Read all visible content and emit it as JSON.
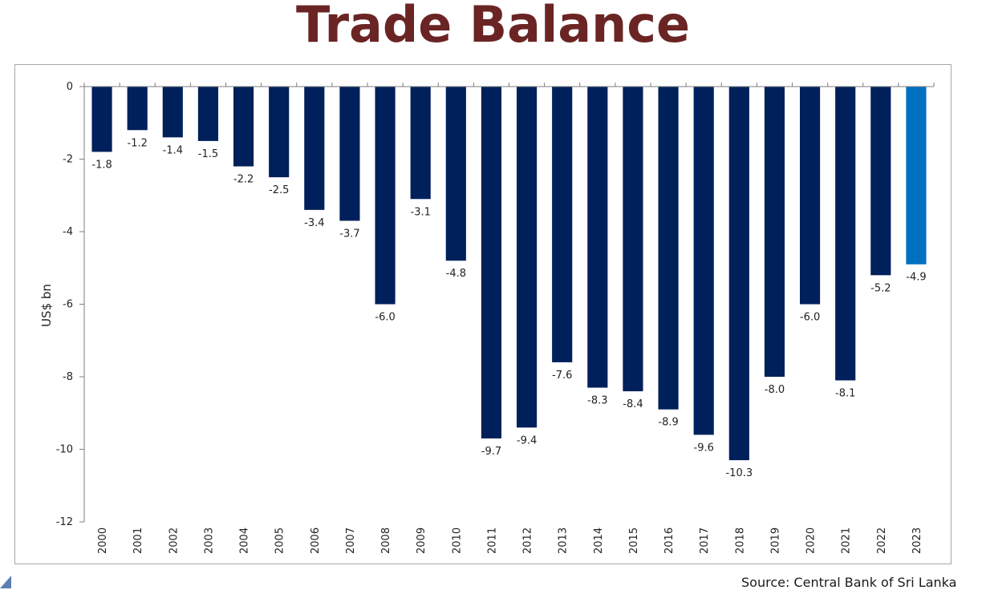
{
  "title": "Trade Balance",
  "source": "Source: Central Bank of Sri Lanka",
  "colors": {
    "title": "#6b2424",
    "bar": "#00205b",
    "highlight": "#0070c0",
    "axis": "#7f7f7f"
  },
  "chart_data": {
    "type": "bar",
    "title": "Trade Balance",
    "ylabel": "US$ bn",
    "xlabel": "",
    "ylim": [
      -12,
      0
    ],
    "yticks": [
      0,
      -2,
      -4,
      -6,
      -8,
      -10,
      -12
    ],
    "grid": false,
    "categories": [
      "2000",
      "2001",
      "2002",
      "2003",
      "2004",
      "2005",
      "2006",
      "2007",
      "2008",
      "2009",
      "2010",
      "2011",
      "2012",
      "2013",
      "2014",
      "2015",
      "2016",
      "2017",
      "2018",
      "2019",
      "2020",
      "2021",
      "2022",
      "2023"
    ],
    "values": [
      -1.8,
      -1.2,
      -1.4,
      -1.5,
      -2.2,
      -2.5,
      -3.4,
      -3.7,
      -6.0,
      -3.1,
      -4.8,
      -9.7,
      -9.4,
      -7.6,
      -8.3,
      -8.4,
      -8.9,
      -9.6,
      -10.3,
      -8.0,
      -6.0,
      -8.1,
      -5.2,
      -4.9
    ],
    "labels": [
      "-1.8",
      "-1.2",
      "-1.4",
      "-1.5",
      "-2.2",
      "-2.5",
      "-3.4",
      "-3.7",
      "-6.0",
      "-3.1",
      "-4.8",
      "-9.7",
      "-9.4",
      "-7.6",
      "-8.3",
      "-8.4",
      "-8.9",
      "-9.6",
      "-10.3",
      "-8.0",
      "-6.0",
      "-8.1",
      "-5.2",
      "-4.9"
    ],
    "highlight_index": 23
  }
}
